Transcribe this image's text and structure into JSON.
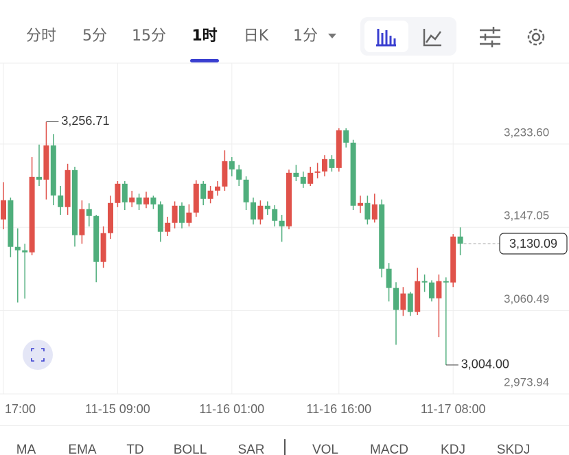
{
  "tabs": {
    "items": [
      "分时",
      "5分",
      "15分",
      "1时",
      "日K",
      "1分"
    ],
    "active": 3
  },
  "indicators": [
    "MA",
    "EMA",
    "TD",
    "BOLL",
    "SAR",
    "VOL",
    "MACD",
    "KDJ",
    "SKDJ"
  ],
  "chart_data": {
    "type": "candlestick",
    "categories": [
      "17:00",
      null,
      null,
      null,
      null,
      null,
      null,
      null,
      null,
      null,
      null,
      null,
      null,
      null,
      null,
      null,
      "11-15 09:00",
      null,
      null,
      null,
      null,
      null,
      null,
      null,
      null,
      null,
      null,
      null,
      null,
      null,
      null,
      null,
      "11-16 01:00",
      null,
      null,
      null,
      null,
      null,
      null,
      null,
      null,
      null,
      null,
      null,
      null,
      null,
      null,
      "11-16 16:00",
      null,
      null,
      null,
      null,
      null,
      null,
      null,
      null,
      null,
      null,
      null,
      null,
      null,
      null,
      null,
      "11-17 08:00",
      null
    ],
    "open": [
      3155.25,
      3175.19,
      3126.75,
      3123.19,
      3121.06,
      3199.41,
      3196.56,
      3232.18,
      3180.18,
      3168.07,
      3206.53,
      3138.86,
      3165.93,
      3158.81,
      3111.08,
      3141.0,
      3172.34,
      3192.29,
      3173.05,
      3178.04,
      3170.92,
      3178.04,
      3170.92,
      3142.43,
      3151.69,
      3169.49,
      3151.69,
      3162.37,
      3192.29,
      3176.62,
      3185.16,
      3189.44,
      3215.79,
      3207.24,
      3196.56,
      3173.05,
      3155.25,
      3169.49,
      3165.93,
      3153.82,
      3148.12,
      3203.68,
      3199.41,
      3192.29,
      3203.68,
      3205.11,
      3217.93,
      3208.67,
      3247.85,
      3235.02,
      3169.49,
      3172.34,
      3155.25,
      3170.92,
      3103.96,
      3084.02,
      3061.22,
      3078.32,
      3059.09,
      3091.14,
      3089.72,
      3073.33,
      3091.14,
      3089.72,
      3137.44
    ],
    "close": [
      3175.19,
      3126.75,
      3123.19,
      3121.06,
      3199.41,
      3196.56,
      3232.18,
      3180.18,
      3168.07,
      3206.53,
      3138.86,
      3165.93,
      3158.81,
      3111.08,
      3141.0,
      3172.34,
      3192.29,
      3173.05,
      3178.04,
      3170.92,
      3178.04,
      3170.92,
      3142.43,
      3151.69,
      3169.49,
      3151.69,
      3162.37,
      3192.29,
      3176.62,
      3185.16,
      3189.44,
      3215.79,
      3207.24,
      3196.56,
      3173.05,
      3155.25,
      3169.49,
      3165.93,
      3153.82,
      3148.12,
      3203.68,
      3199.41,
      3192.29,
      3203.68,
      3205.11,
      3217.93,
      3208.67,
      3247.85,
      3235.02,
      3169.49,
      3172.34,
      3155.25,
      3170.92,
      3103.96,
      3084.02,
      3061.22,
      3078.32,
      3059.09,
      3091.14,
      3089.72,
      3073.33,
      3091.14,
      3089.72,
      3137.44,
      3130.09
    ],
    "high": [
      3194,
      3178,
      3146,
      3130,
      3220,
      3233,
      3256.71,
      3244,
      3190,
      3213,
      3210,
      3175,
      3172,
      3160,
      3148,
      3180,
      3195,
      3195,
      3185,
      3182,
      3184,
      3180,
      3174,
      3158,
      3174,
      3173,
      3171,
      3196,
      3195,
      3190,
      3195,
      3227,
      3220,
      3212,
      3200,
      3178,
      3175,
      3174,
      3170,
      3160,
      3207,
      3212,
      3205,
      3210,
      3214,
      3222,
      3222,
      3250,
      3250,
      3238,
      3180,
      3180,
      3182,
      3176,
      3110,
      3090,
      3085,
      3080,
      3105,
      3098,
      3092,
      3098,
      3095,
      3140,
      3147
    ],
    "low": [
      3145,
      3116,
      3069,
      3073,
      3118,
      3190,
      3176,
      3170,
      3160,
      3160,
      3127,
      3130,
      3148,
      3090,
      3105,
      3135,
      3168,
      3165,
      3168,
      3165,
      3167,
      3166,
      3132,
      3138,
      3146,
      3146,
      3148,
      3158,
      3170,
      3172,
      3180,
      3185,
      3200,
      3190,
      3165,
      3150,
      3150,
      3160,
      3148,
      3132,
      3145,
      3195,
      3188,
      3190,
      3198,
      3200,
      3205,
      3205,
      3230,
      3165,
      3162,
      3150,
      3152,
      3095,
      3070,
      3025,
      3055,
      3055,
      3056,
      3080,
      3070,
      3033,
      3004.0,
      3085,
      3118
    ],
    "up_color": "#e0524a",
    "down_color": "#4fae7c",
    "ylim": [
      2973.94,
      3317.65
    ],
    "yticks": [
      {
        "value": 2973.94,
        "label": "2,973.94"
      },
      {
        "value": 3060.49,
        "label": "3,060.49"
      },
      {
        "value": 3147.05,
        "label": "3,147.05"
      },
      {
        "value": 3233.6,
        "label": "3,233.60"
      }
    ],
    "grid": true,
    "high_label": {
      "value": 3256.71,
      "label": "3,256.71"
    },
    "low_label": {
      "value": 3004.0,
      "label": "3,004.00"
    },
    "last_price": {
      "value": 3130.09,
      "label": "3,130.09"
    }
  }
}
